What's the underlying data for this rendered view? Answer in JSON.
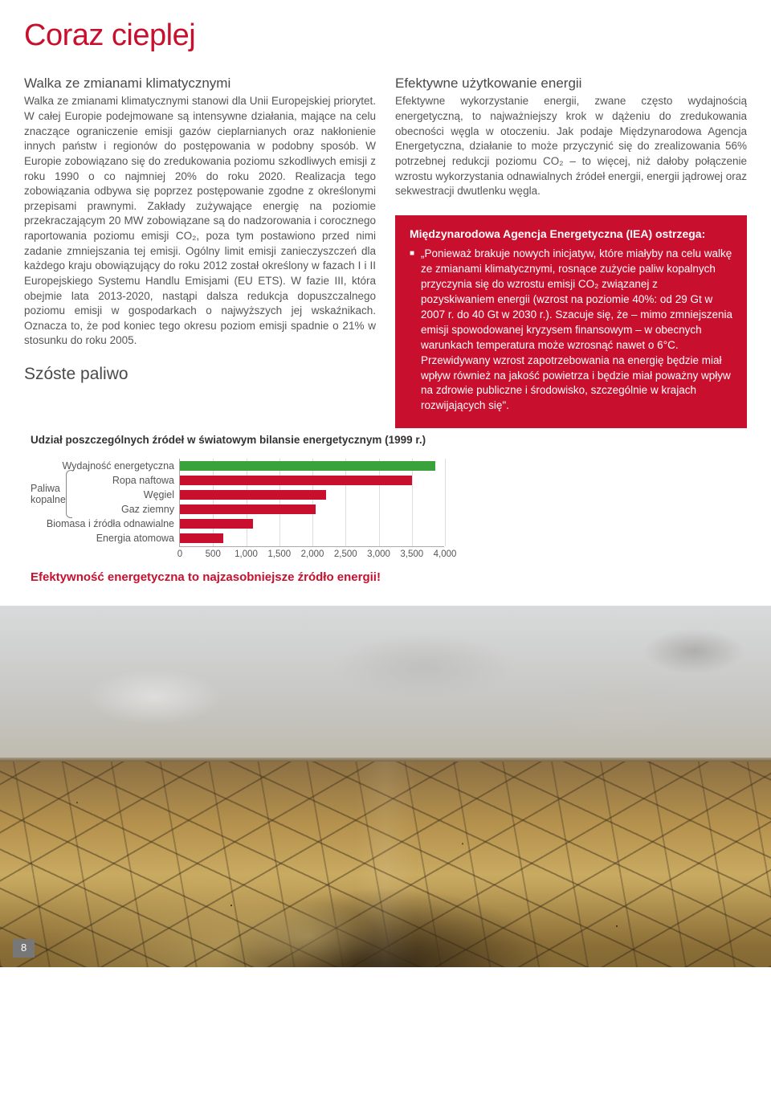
{
  "title": "Coraz cieplej",
  "left": {
    "subhead": "Walka ze zmianami klimatycznymi",
    "body": "Walka ze zmianami klimatycznymi stanowi dla Unii Europejskiej priorytet. W całej Europie podejmowane są intensywne działania, mające na celu znaczące ograniczenie emisji gazów cieplarnianych oraz nakłonienie innych państw i regionów do postępowania w podobny sposób. W Europie zobowiązano się do zredukowania poziomu szkodliwych emisji z roku 1990 o co najmniej 20% do roku 2020. Realizacja tego zobowiązania odbywa się poprzez postępowanie zgodne z określonymi przepisami prawnymi. Zakłady zużywające energię na poziomie przekraczającym 20 MW zobowiązane są do nadzorowania i corocznego raportowania poziomu emisji CO₂, poza tym postawiono przed nimi zadanie zmniejszania tej emisji. Ogólny limit emisji zanieczyszczeń dla każdego kraju obowiązujący do roku 2012 został określony w fazach I i II Europejskiego Systemu Handlu Emisjami (EU ETS). W fazie III, która obejmie lata 2013-2020, nastąpi dalsza redukcja dopuszczalnego poziomu emisji w gospodarkach o najwyższych jej wskaźnikach. Oznacza to, że pod koniec tego okresu poziom emisji spadnie o 21% w stosunku do roku 2005.",
    "section2": "Szóste paliwo"
  },
  "right": {
    "subhead": "Efektywne użytkowanie energii",
    "body": "Efektywne wykorzystanie energii, zwane często wydajnością energetyczną, to najważniejszy krok w dążeniu do zredukowania obecności węgla w otoczeniu. Jak podaje Międzynarodowa Agencja Energetyczna, działanie to może przyczynić się do zrealizowania 56% potrzebnej redukcji poziomu CO₂ – to więcej, niż dałoby połączenie wzrostu wykorzystania odnawialnych źródeł energii, energii jądrowej oraz sekwestracji dwutlenku węgla."
  },
  "callout": {
    "title": "Międzynarodowa Agencja Energetyczna (IEA) ostrzega:",
    "text": "„Ponieważ brakuje nowych inicjatyw, które miałyby na celu walkę ze zmianami klimatycznymi, rosnące zużycie paliw kopalnych przyczynia się do wzrostu emisji CO₂ związanej z pozyskiwaniem energii (wzrost na poziomie 40%: od 29 Gt w 2007 r. do 40 Gt w 2030 r.). Szacuje się, że – mimo zmniejszenia emisji spowodowanej kryzysem finansowym – w obecnych warunkach temperatura może wzrosnąć nawet o 6°C. Przewidywany wzrost zapotrzebowania na energię będzie miał wpływ również na jakość powietrza i będzie miał poważny wpływ na zdrowie publiczne i środowisko, szczególnie w krajach rozwijających się\"."
  },
  "chart": {
    "title": "Udział poszczególnych źródeł w światowym bilansie energetycznym (1999 r.)",
    "group_label": "Paliwa\nkopalne",
    "labels": [
      "Wydajność energetyczna",
      "Ropa naftowa",
      "Węgiel",
      "Gaz ziemny",
      "Biomasa i źródła odnawialne",
      "Energia atomowa"
    ],
    "values": [
      3850,
      3500,
      2200,
      2050,
      1100,
      650
    ],
    "colors": [
      "#3aa23a",
      "#c8102e",
      "#c8102e",
      "#c8102e",
      "#c8102e",
      "#c8102e"
    ],
    "xmax": 4000,
    "xticks": [
      "0",
      "500",
      "1,000",
      "1,500",
      "2,000",
      "2,500",
      "3,000",
      "3,500",
      "4,000"
    ],
    "caption": "Efektywność energetyczna to najzasobniejsze źródło energii!"
  },
  "page_number": "8"
}
